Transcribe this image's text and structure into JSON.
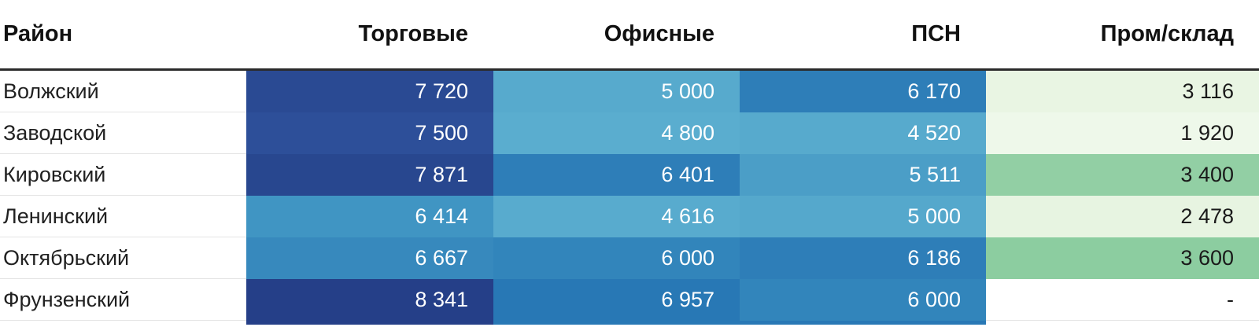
{
  "table": {
    "header": {
      "district": "Район",
      "cols": [
        "Торговые",
        "Офисные",
        "ПСН",
        "Пром/склад"
      ]
    },
    "rows": [
      {
        "district": "Волжский",
        "cells": [
          {
            "value": "7 720",
            "bg": "#2a4a93",
            "fg": "#ffffff"
          },
          {
            "value": "5 000",
            "bg": "#57aacd",
            "fg": "#ffffff"
          },
          {
            "value": "6 170",
            "bg": "#2e7eb8",
            "fg": "#ffffff"
          },
          {
            "value": "3 116",
            "bg": "#e9f5e3",
            "fg": "#1a1a1a"
          }
        ]
      },
      {
        "district": "Заводской",
        "cells": [
          {
            "value": "7 500",
            "bg": "#2d4f99",
            "fg": "#ffffff"
          },
          {
            "value": "4 800",
            "bg": "#5aadcf",
            "fg": "#ffffff"
          },
          {
            "value": "4 520",
            "bg": "#57aacd",
            "fg": "#ffffff"
          },
          {
            "value": "1 920",
            "bg": "#eef8ea",
            "fg": "#1a1a1a"
          }
        ]
      },
      {
        "district": "Кировский",
        "cells": [
          {
            "value": "7 871",
            "bg": "#28478f",
            "fg": "#ffffff"
          },
          {
            "value": "6 401",
            "bg": "#2e7eb8",
            "fg": "#ffffff"
          },
          {
            "value": "5 511",
            "bg": "#4b9ec7",
            "fg": "#ffffff"
          },
          {
            "value": "3 400",
            "bg": "#92cfa4",
            "fg": "#1a1a1a"
          }
        ]
      },
      {
        "district": "Ленинский",
        "cells": [
          {
            "value": "6 414",
            "bg": "#4095c3",
            "fg": "#ffffff"
          },
          {
            "value": "4 616",
            "bg": "#58abce",
            "fg": "#ffffff"
          },
          {
            "value": "5 000",
            "bg": "#55a8cc",
            "fg": "#ffffff"
          },
          {
            "value": "2 478",
            "bg": "#e7f4e1",
            "fg": "#1a1a1a"
          }
        ]
      },
      {
        "district": "Октябрьский",
        "cells": [
          {
            "value": "6 667",
            "bg": "#3789bd",
            "fg": "#ffffff"
          },
          {
            "value": "6 000",
            "bg": "#3285bb",
            "fg": "#ffffff"
          },
          {
            "value": "6 186",
            "bg": "#2e7eb8",
            "fg": "#ffffff"
          },
          {
            "value": "3 600",
            "bg": "#8ccda0",
            "fg": "#1a1a1a"
          }
        ]
      },
      {
        "district": "Фрунзенский",
        "cells": [
          {
            "value": "8 341",
            "bg": "#253f88",
            "fg": "#ffffff"
          },
          {
            "value": "6 957",
            "bg": "#2878b5",
            "fg": "#ffffff"
          },
          {
            "value": "6 000",
            "bg": "#3285bb",
            "fg": "#ffffff"
          },
          {
            "value": "-",
            "bg": "transparent",
            "fg": "#1a1a1a"
          }
        ]
      }
    ]
  },
  "cutoff_row": {
    "cells": [
      {
        "bg": "#253f88"
      },
      {
        "bg": "#2878b5"
      },
      {
        "bg": "#2878b5"
      },
      {
        "bg": "transparent"
      }
    ]
  },
  "chart_data": {
    "type": "heatmap",
    "title": "",
    "row_label": "Район",
    "columns": [
      "Торговые",
      "Офисные",
      "ПСН",
      "Пром/склад"
    ],
    "rows": [
      "Волжский",
      "Заводской",
      "Кировский",
      "Ленинский",
      "Октябрьский",
      "Фрунзенский"
    ],
    "values": [
      [
        7720,
        5000,
        6170,
        3116
      ],
      [
        7500,
        4800,
        4520,
        1920
      ],
      [
        7871,
        6401,
        5511,
        3400
      ],
      [
        6414,
        4616,
        5000,
        2478
      ],
      [
        6667,
        6000,
        6186,
        3600
      ],
      [
        8341,
        6957,
        6000,
        null
      ]
    ],
    "missing_marker": "-",
    "legend_position": "none",
    "grid": false,
    "colorscale_blue": [
      "#5aadcf",
      "#2e7eb8",
      "#253f88"
    ],
    "colorscale_green": [
      "#eef8ea",
      "#8ccda0"
    ]
  }
}
